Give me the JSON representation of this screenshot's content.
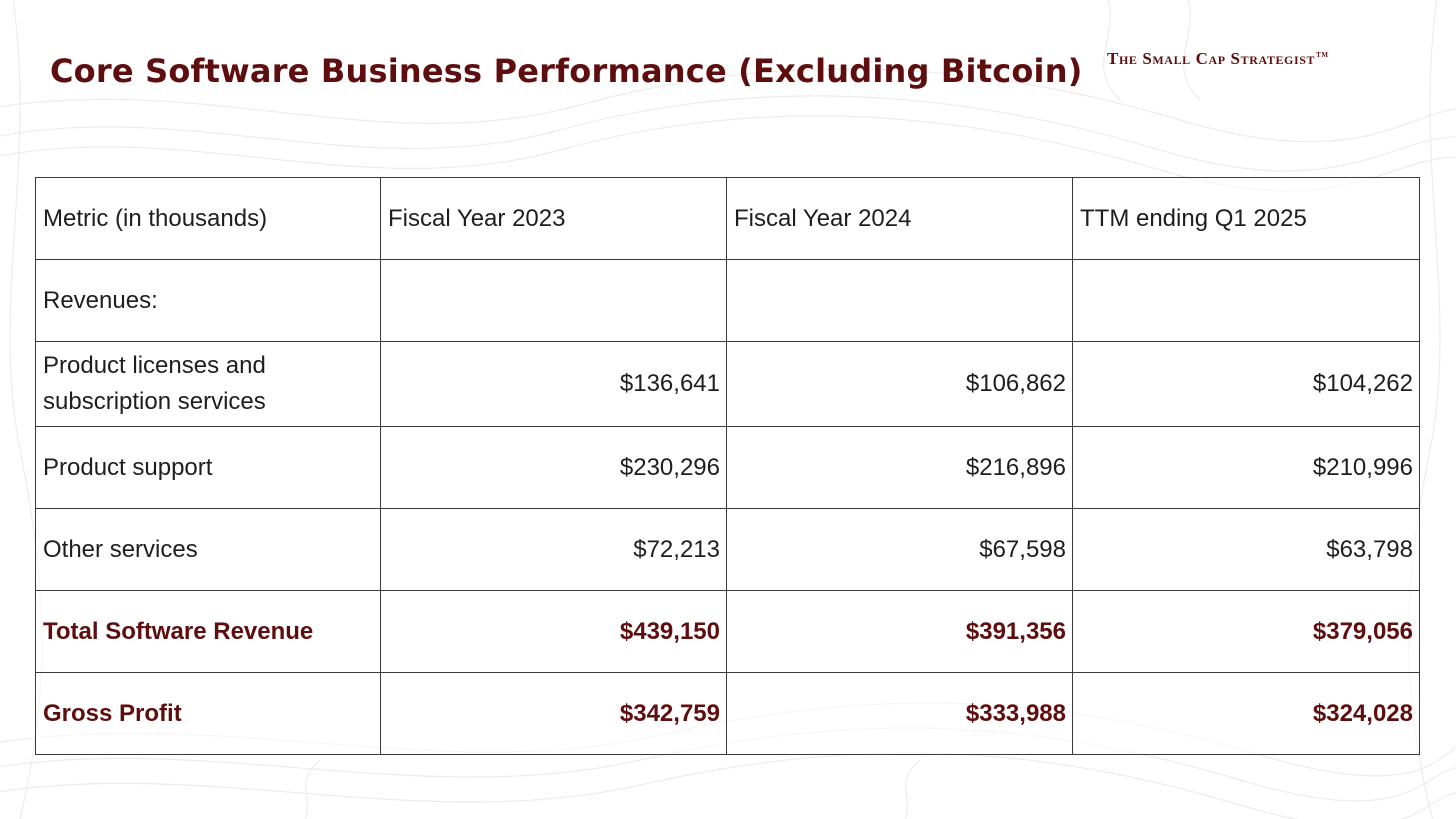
{
  "header": {
    "title": "Core Software Business Performance (Excluding Bitcoin)",
    "brand": "The Small Cap Strategist",
    "brand_mark": "TM"
  },
  "colors": {
    "accent": "#5e0e0e",
    "text": "#1e1e1e",
    "border": "#3a3a3a",
    "background": "#ffffff"
  },
  "table": {
    "columns": [
      "Metric (in thousands)",
      "Fiscal Year 2023",
      "Fiscal Year 2024",
      "TTM ending Q1 2025"
    ],
    "section_label": "Revenues:",
    "rows": [
      {
        "label": "Product licenses and subscription services",
        "values": [
          "$136,641",
          "$106,862",
          "$104,262"
        ]
      },
      {
        "label": "Product support",
        "values": [
          "$230,296",
          "$216,896",
          "$210,996"
        ]
      },
      {
        "label": "Other services",
        "values": [
          "$72,213",
          "$67,598",
          "$63,798"
        ]
      },
      {
        "label": "Total Software Revenue",
        "values": [
          "$439,150",
          "$391,356",
          "$379,056"
        ]
      },
      {
        "label": "Gross Profit",
        "values": [
          "$342,759",
          "$333,988",
          "$324,028"
        ]
      }
    ]
  }
}
